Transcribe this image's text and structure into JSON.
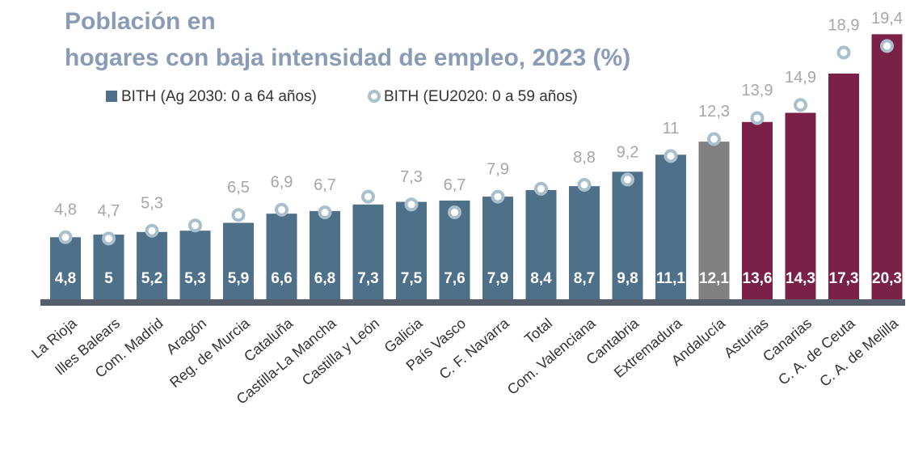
{
  "chart_data": {
    "type": "bar",
    "title_lines": [
      "Población en",
      "hogares con baja intensidad de empleo, 2023 (%)"
    ],
    "categories": [
      "La Rioja",
      "Illes Balears",
      "Com. Madrid",
      "Aragón",
      "Reg. de Murcia",
      "Cataluña",
      "Castilla-La Mancha",
      "Castilla y León",
      "Galicia",
      "País Vasco",
      "C. F. Navarra",
      "Total",
      "Com. Valenciana",
      "Cantabria",
      "Extremadura",
      "Andalucía",
      "Asturias",
      "Canarias",
      "C. A. de Ceuta",
      "C. A. de Melilla"
    ],
    "ylim": [
      0,
      21
    ],
    "series": [
      {
        "name": "BITH (Ag 2030: 0 a 64 años)",
        "type": "bar",
        "color": "#4e7189",
        "colors": [
          "#4e7189",
          "#4e7189",
          "#4e7189",
          "#4e7189",
          "#4e7189",
          "#4e7189",
          "#4e7189",
          "#4e7189",
          "#4e7189",
          "#4e7189",
          "#4e7189",
          "#4e7189",
          "#4e7189",
          "#4e7189",
          "#4e7189",
          "#808080",
          "#7b2148",
          "#7b2148",
          "#7b2148",
          "#7b2148"
        ],
        "values": [
          4.8,
          5,
          5.2,
          5.3,
          5.9,
          6.6,
          6.8,
          7.3,
          7.5,
          7.6,
          7.9,
          8.4,
          8.7,
          9.8,
          11.1,
          12.1,
          13.6,
          14.3,
          17.3,
          20.3
        ],
        "value_labels": [
          "4,8",
          "5",
          "5,2",
          "5,3",
          "5,9",
          "6,6",
          "6,8",
          "7,3",
          "7,5",
          "7,6",
          "7,9",
          "8,4",
          "8,7",
          "9,8",
          "11,1",
          "12,1",
          "13,6",
          "14,3",
          "17,3",
          "20,3"
        ]
      },
      {
        "name": "BITH (EU2020: 0 a 59 años)",
        "type": "scatter",
        "color": "#a9bfcc",
        "values": [
          4.8,
          4.7,
          5.3,
          5.7,
          6.5,
          6.9,
          6.7,
          7.9,
          7.3,
          6.7,
          7.9,
          8.5,
          8.8,
          9.2,
          11,
          12.3,
          13.9,
          14.9,
          18.9,
          19.4
        ],
        "value_labels": [
          "4,8",
          "4,7",
          "5,3",
          null,
          "6,5",
          "6,9",
          "6,7",
          null,
          "7,3",
          "6,7",
          "7,9",
          null,
          "8,8",
          "9,2",
          "11",
          "12,3",
          "13,9",
          "14,9",
          "18,9",
          "19,4"
        ]
      }
    ]
  }
}
